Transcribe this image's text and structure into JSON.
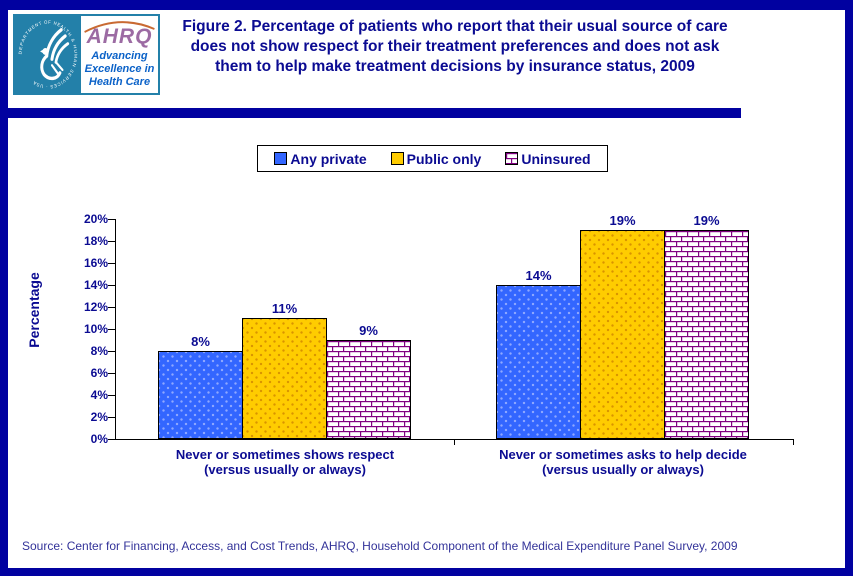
{
  "colors": {
    "frame_navy": "#0101A0",
    "text_navy": "#0B0B92",
    "source_text": "#333399",
    "axis": "#000000",
    "hhs_teal": "#2380A9",
    "ahrq_purple": "#9C6BA3",
    "ahrq_blue": "#0B62C8",
    "arc_orange": "#C96A32",
    "brick_purple": "#800080"
  },
  "header": {
    "title": "Figure 2. Percentage of patients who report that their usual source of care\ndoes not show respect for their treatment preferences and does not ask\nthem to help make treatment decisions by insurance status, 2009",
    "logo": {
      "seal_text": "DEPARTMENT OF HEALTH & HUMAN SERVICES · USA",
      "ahrq_acronym": "AHRQ",
      "tagline": "Advancing\nExcellence in\nHealth Care"
    }
  },
  "chart_data": {
    "type": "bar",
    "ylabel": "Percentage",
    "ylim": [
      0,
      20
    ],
    "ytick_step": 2,
    "ytick_labels": [
      "0%",
      "2%",
      "4%",
      "6%",
      "8%",
      "10%",
      "12%",
      "14%",
      "16%",
      "18%",
      "20%"
    ],
    "grid": false,
    "legend_position": "top-center",
    "categories": [
      "Never or sometimes shows respect\n(versus usually or always)",
      "Never or sometimes asks to help decide\n(versus usually or always)"
    ],
    "series": [
      {
        "name": "Any private",
        "values": [
          8,
          14
        ],
        "value_labels": [
          "8%",
          "14%"
        ],
        "color": "#3366FF",
        "pattern": "dots",
        "dot_color": "#8FA8FF"
      },
      {
        "name": "Public only",
        "values": [
          11,
          19
        ],
        "value_labels": [
          "11%",
          "19%"
        ],
        "color": "#FFCC00",
        "pattern": "dots",
        "dot_color": "#D99400"
      },
      {
        "name": "Uninsured",
        "values": [
          9,
          19
        ],
        "value_labels": [
          "9%",
          "19%"
        ],
        "color": "#FFFFFF",
        "pattern": "bricks",
        "pattern_color": "#800080"
      }
    ]
  },
  "footer": {
    "source": "Source: Center for Financing, Access, and Cost Trends, AHRQ, Household Component of the Medical Expenditure Panel Survey, 2009"
  }
}
